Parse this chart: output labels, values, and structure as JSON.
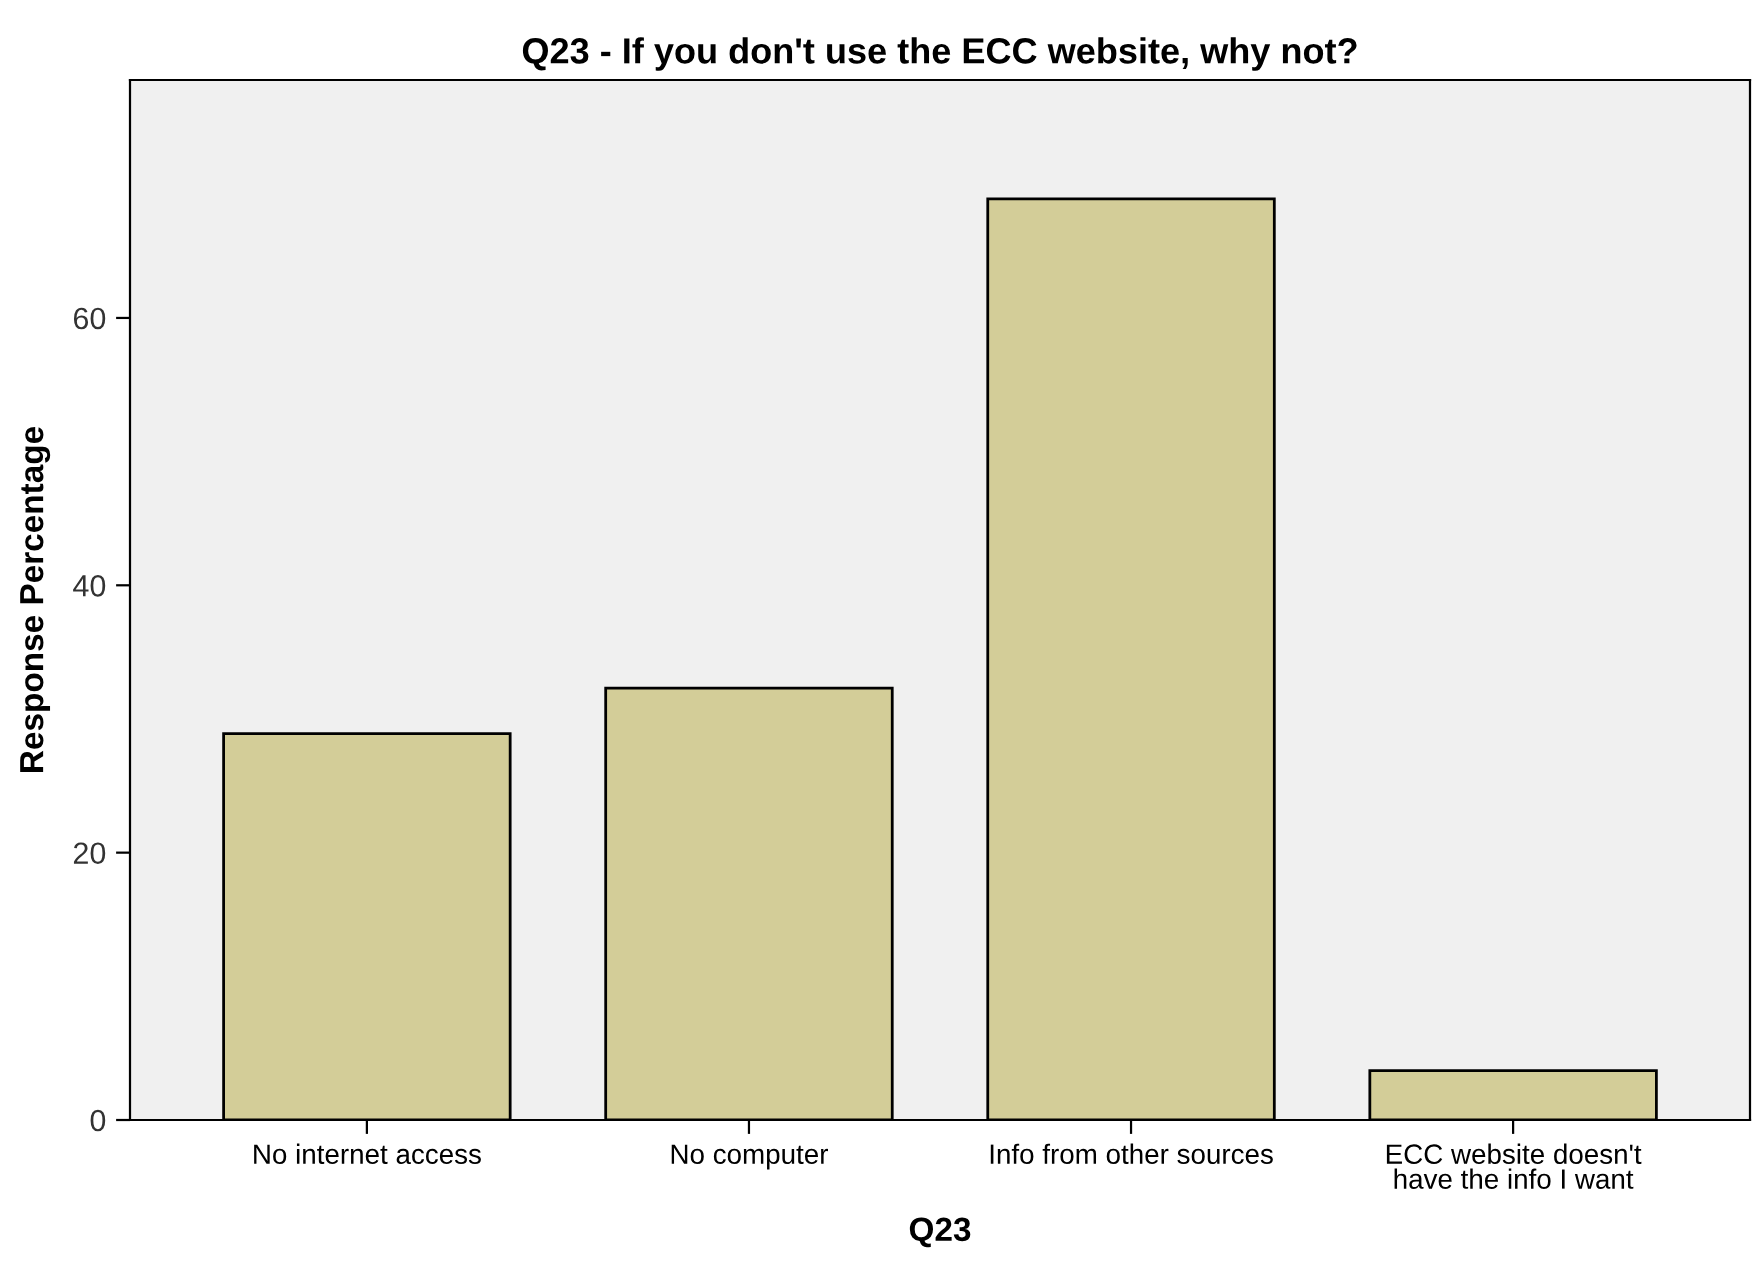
{
  "chart_data": {
    "type": "bar",
    "title": "Q23 - If you don't use the ECC website, why not?",
    "xlabel": "Q23",
    "ylabel": "Response Percentage",
    "categories": [
      "No internet access",
      "No computer",
      "Info from other sources",
      "ECC website doesn't\nhave the info I want"
    ],
    "values": [
      28.9,
      32.3,
      68.9,
      3.7
    ],
    "color": "#d3cd98",
    "ylim": [
      0,
      77.8
    ],
    "yticks": [
      0,
      20,
      40,
      60
    ],
    "grid": false
  }
}
